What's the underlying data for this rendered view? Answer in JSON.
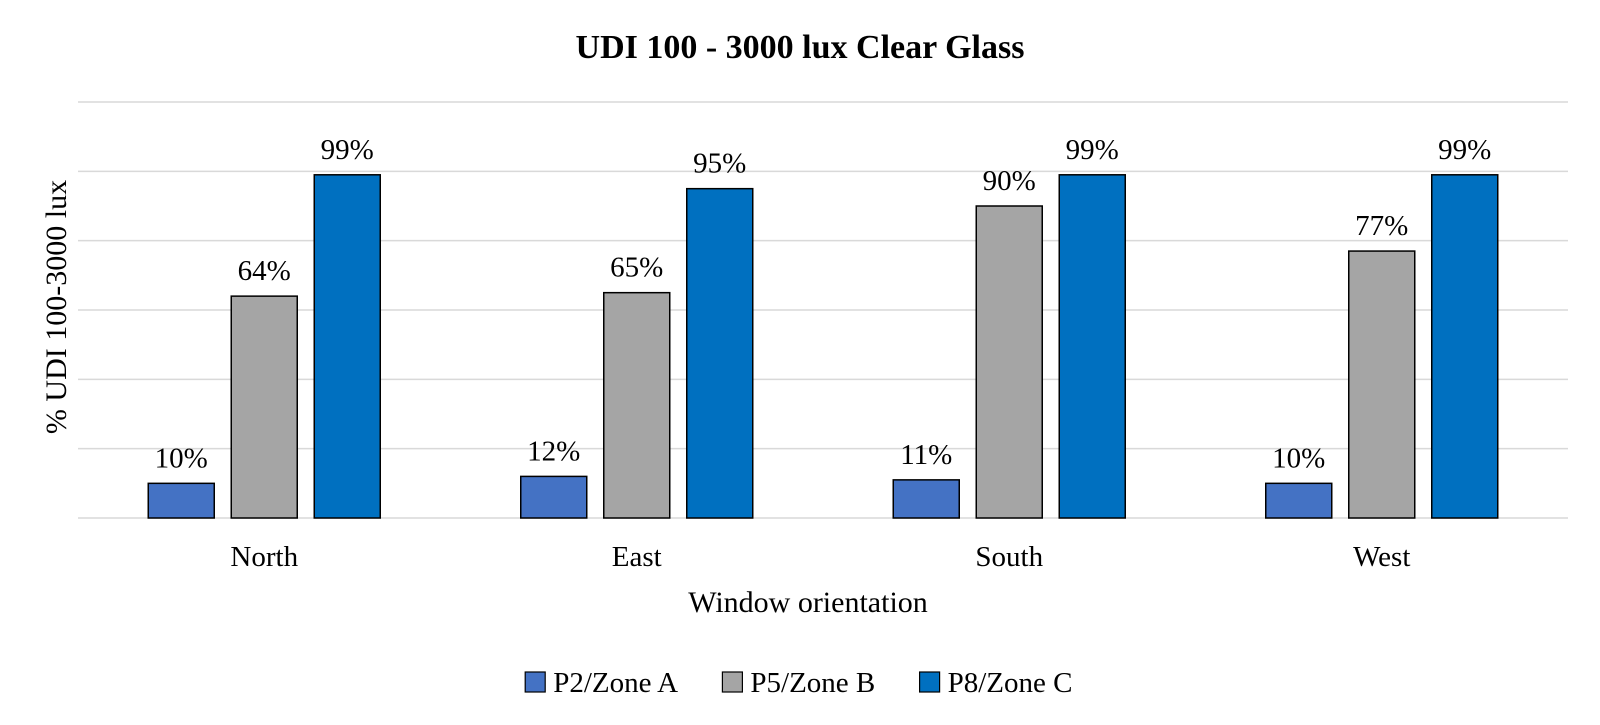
{
  "chart_data": {
    "type": "bar",
    "title": "UDI 100 - 3000 lux Clear Glass",
    "xlabel": "Window orientation",
    "ylabel": "% UDI 100-3000 lux",
    "categories": [
      "North",
      "East",
      "South",
      "West"
    ],
    "series": [
      {
        "name": "P2/Zone A",
        "color": "#4472c4",
        "values": [
          10,
          12,
          11,
          10
        ],
        "labels": [
          "10%",
          "12%",
          "11%",
          "10%"
        ]
      },
      {
        "name": "P5/Zone B",
        "color": "#a5a5a5",
        "values": [
          64,
          65,
          90,
          77
        ],
        "labels": [
          "64%",
          "65%",
          "90%",
          "77%"
        ]
      },
      {
        "name": "P8/Zone C",
        "color": "#0070c0",
        "values": [
          99,
          95,
          99,
          99
        ],
        "labels": [
          "99%",
          "95%",
          "99%",
          "99%"
        ]
      }
    ],
    "ylim": [
      0,
      120
    ],
    "y_gridline_step": 20,
    "y_tick_labels_shown": false,
    "grid": true,
    "legend_position": "bottom"
  }
}
